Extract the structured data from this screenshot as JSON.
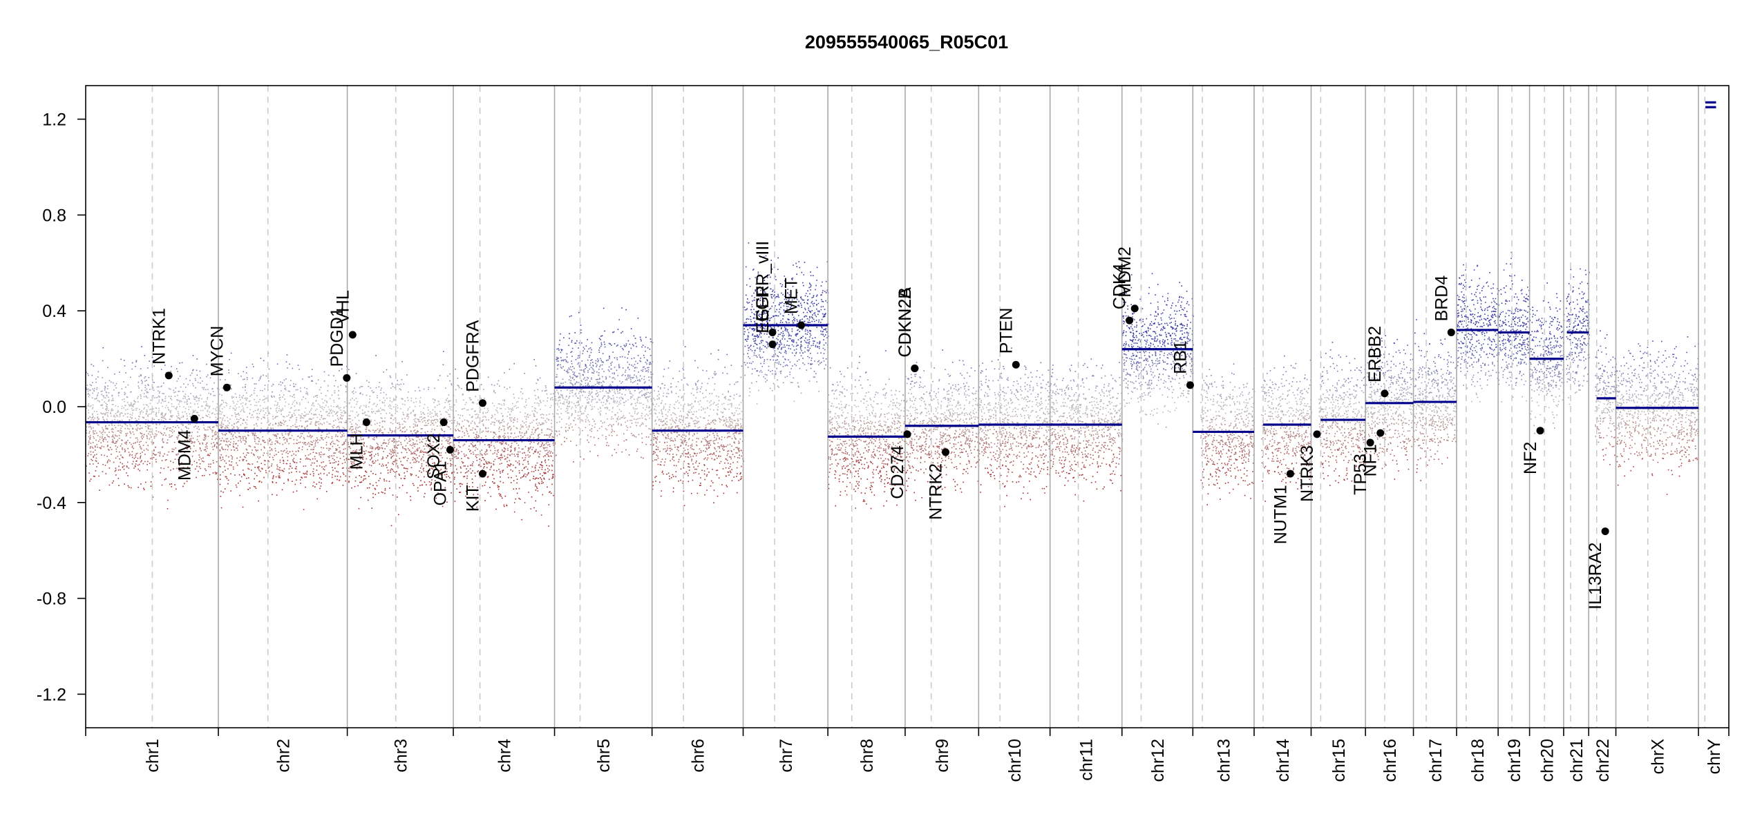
{
  "chart_data": {
    "type": "scatter",
    "title": "209555540065_R05C01",
    "xlabel": "",
    "ylabel": "",
    "ylim": [
      -1.34,
      1.34
    ],
    "yticks": [
      -1.2,
      -0.8,
      -0.4,
      0.0,
      0.4,
      0.8,
      1.2
    ],
    "ytick_labels": [
      "-1.2",
      "-0.8",
      "-0.4",
      "0.0",
      "0.4",
      "0.8",
      "1.2"
    ],
    "colors": {
      "gain": "#3b3ba8",
      "loss": "#a52a2a",
      "neutral": "#bbbbbb",
      "segment": "#00008b",
      "gene": "#000000",
      "border": "#aaaaaa",
      "centromere": "#cccccc"
    },
    "chromosomes": [
      {
        "name": "chr1",
        "start": 0,
        "end": 249,
        "centromere": 125,
        "segments": [
          {
            "start": 0,
            "end": 249,
            "value": -0.065
          }
        ]
      },
      {
        "name": "chr2",
        "start": 249,
        "end": 491,
        "centromere": 342,
        "segments": [
          {
            "start": 249,
            "end": 491,
            "value": -0.1
          }
        ]
      },
      {
        "name": "chr3",
        "start": 491,
        "end": 690,
        "centromere": 582,
        "segments": [
          {
            "start": 491,
            "end": 690,
            "value": -0.12
          }
        ]
      },
      {
        "name": "chr4",
        "start": 690,
        "end": 880,
        "centromere": 740,
        "segments": [
          {
            "start": 690,
            "end": 880,
            "value": -0.14
          }
        ]
      },
      {
        "name": "chr5",
        "start": 880,
        "end": 1063,
        "centromere": 928,
        "segments": [
          {
            "start": 880,
            "end": 1063,
            "value": 0.08
          }
        ]
      },
      {
        "name": "chr6",
        "start": 1063,
        "end": 1234,
        "centromere": 1122,
        "segments": [
          {
            "start": 1063,
            "end": 1234,
            "value": -0.1
          }
        ]
      },
      {
        "name": "chr7",
        "start": 1234,
        "end": 1393,
        "centromere": 1293,
        "segments": [
          {
            "start": 1234,
            "end": 1393,
            "value": 0.34
          }
        ]
      },
      {
        "name": "chr8",
        "start": 1393,
        "end": 1538,
        "centromere": 1438,
        "segments": [
          {
            "start": 1393,
            "end": 1538,
            "value": -0.125
          }
        ]
      },
      {
        "name": "chr9",
        "start": 1538,
        "end": 1676,
        "centromere": 1587,
        "segments": [
          {
            "start": 1538,
            "end": 1676,
            "value": -0.08
          }
        ]
      },
      {
        "name": "chr10",
        "start": 1676,
        "end": 1810,
        "centromere": 1716,
        "segments": [
          {
            "start": 1676,
            "end": 1810,
            "value": -0.075
          }
        ]
      },
      {
        "name": "chr11",
        "start": 1810,
        "end": 1945,
        "centromere": 1863,
        "segments": [
          {
            "start": 1810,
            "end": 1945,
            "value": -0.075
          }
        ]
      },
      {
        "name": "chr12",
        "start": 1945,
        "end": 2078,
        "centromere": 1981,
        "segments": [
          {
            "start": 1945,
            "end": 2078,
            "value": 0.24
          }
        ]
      },
      {
        "name": "chr13",
        "start": 2078,
        "end": 2193,
        "centromere": 2096,
        "segments": [
          {
            "start": 2078,
            "end": 2193,
            "value": -0.105
          }
        ]
      },
      {
        "name": "chr14",
        "start": 2193,
        "end": 2300,
        "centromere": 2210,
        "segments": [
          {
            "start": 2210,
            "end": 2300,
            "value": -0.075
          }
        ]
      },
      {
        "name": "chr15",
        "start": 2300,
        "end": 2402,
        "centromere": 2318,
        "segments": [
          {
            "start": 2318,
            "end": 2402,
            "value": -0.055
          }
        ]
      },
      {
        "name": "chr16",
        "start": 2402,
        "end": 2492,
        "centromere": 2438,
        "segments": [
          {
            "start": 2402,
            "end": 2492,
            "value": 0.015
          }
        ]
      },
      {
        "name": "chr17",
        "start": 2492,
        "end": 2573,
        "centromere": 2516,
        "segments": [
          {
            "start": 2492,
            "end": 2573,
            "value": 0.02
          }
        ]
      },
      {
        "name": "chr18",
        "start": 2573,
        "end": 2651,
        "centromere": 2591,
        "segments": [
          {
            "start": 2573,
            "end": 2651,
            "value": 0.32
          }
        ]
      },
      {
        "name": "chr19",
        "start": 2651,
        "end": 2710,
        "centromere": 2677,
        "segments": [
          {
            "start": 2651,
            "end": 2710,
            "value": 0.31
          }
        ]
      },
      {
        "name": "chr20",
        "start": 2710,
        "end": 2774,
        "centromere": 2738,
        "segments": [
          {
            "start": 2710,
            "end": 2774,
            "value": 0.2
          }
        ]
      },
      {
        "name": "chr21",
        "start": 2774,
        "end": 2821,
        "centromere": 2787,
        "segments": [
          {
            "start": 2780,
            "end": 2821,
            "value": 0.31
          }
        ]
      },
      {
        "name": "chr22",
        "start": 2821,
        "end": 2872,
        "centromere": 2836,
        "segments": [
          {
            "start": 2836,
            "end": 2872,
            "value": 0.035
          }
        ]
      },
      {
        "name": "chrX",
        "start": 2872,
        "end": 3027,
        "centromere": 2932,
        "segments": [
          {
            "start": 2872,
            "end": 3027,
            "value": -0.005
          }
        ]
      },
      {
        "name": "chrY",
        "start": 3027,
        "end": 3084,
        "centromere": 3039,
        "segments": [
          {
            "start": 3040,
            "end": 3060,
            "value": 1.27
          },
          {
            "start": 3040,
            "end": 3060,
            "value": 1.25
          }
        ]
      }
    ],
    "genes": [
      {
        "name": "NTRK1",
        "x": 156,
        "value": 0.13,
        "label_side": "above"
      },
      {
        "name": "MDM4",
        "x": 204,
        "value": -0.05,
        "label_side": "below"
      },
      {
        "name": "MYCN",
        "x": 265,
        "value": 0.08,
        "label_side": "above"
      },
      {
        "name": "PDGD1",
        "x": 490,
        "value": 0.12,
        "label_side": "above"
      },
      {
        "name": "VHL",
        "x": 501,
        "value": 0.3,
        "label_side": "above"
      },
      {
        "name": "MLH",
        "x": 527,
        "value": -0.065,
        "label_side": "below"
      },
      {
        "name": "SOX2",
        "x": 672,
        "value": -0.065,
        "label_side": "below"
      },
      {
        "name": "OPA1",
        "x": 684,
        "value": -0.18,
        "label_side": "below"
      },
      {
        "name": "PDGFRA",
        "x": 745,
        "value": 0.015,
        "label_side": "above"
      },
      {
        "name": "KIT",
        "x": 745,
        "value": -0.28,
        "label_side": "below"
      },
      {
        "name": "EGFR_vIII",
        "x": 1289,
        "value": 0.31,
        "label_side": "above"
      },
      {
        "name": "EGFR",
        "x": 1289,
        "value": 0.26,
        "label_side": "above"
      },
      {
        "name": "MET",
        "x": 1343,
        "value": 0.34,
        "label_side": "above"
      },
      {
        "name": "CD274",
        "x": 1542,
        "value": -0.115,
        "label_side": "below"
      },
      {
        "name": "CDKN2A",
        "x": 1556,
        "value": 0.16,
        "label_side": "above"
      },
      {
        "name": "CDKN2B",
        "x": 1556,
        "value": 0.16,
        "label_side": "above"
      },
      {
        "name": "NTRK2",
        "x": 1614,
        "value": -0.19,
        "label_side": "below"
      },
      {
        "name": "PTEN",
        "x": 1746,
        "value": 0.175,
        "label_side": "above"
      },
      {
        "name": "CDK4",
        "x": 1959,
        "value": 0.36,
        "label_side": "above"
      },
      {
        "name": "MDM2",
        "x": 1969,
        "value": 0.41,
        "label_side": "above"
      },
      {
        "name": "RB1",
        "x": 2073,
        "value": 0.09,
        "label_side": "above"
      },
      {
        "name": "NUTM1",
        "x": 2261,
        "value": -0.28,
        "label_side": "below"
      },
      {
        "name": "NTRK3",
        "x": 2311,
        "value": -0.115,
        "label_side": "below"
      },
      {
        "name": "TP53",
        "x": 2411,
        "value": -0.15,
        "label_side": "below"
      },
      {
        "name": "NF1",
        "x": 2430,
        "value": -0.11,
        "label_side": "below"
      },
      {
        "name": "ERBB2",
        "x": 2438,
        "value": 0.055,
        "label_side": "above"
      },
      {
        "name": "BRD4",
        "x": 2563,
        "value": 0.31,
        "label_side": "above"
      },
      {
        "name": "NF2",
        "x": 2730,
        "value": -0.1,
        "label_side": "below"
      },
      {
        "name": "IL13RA2",
        "x": 2852,
        "value": -0.52,
        "label_side": "below"
      }
    ]
  }
}
